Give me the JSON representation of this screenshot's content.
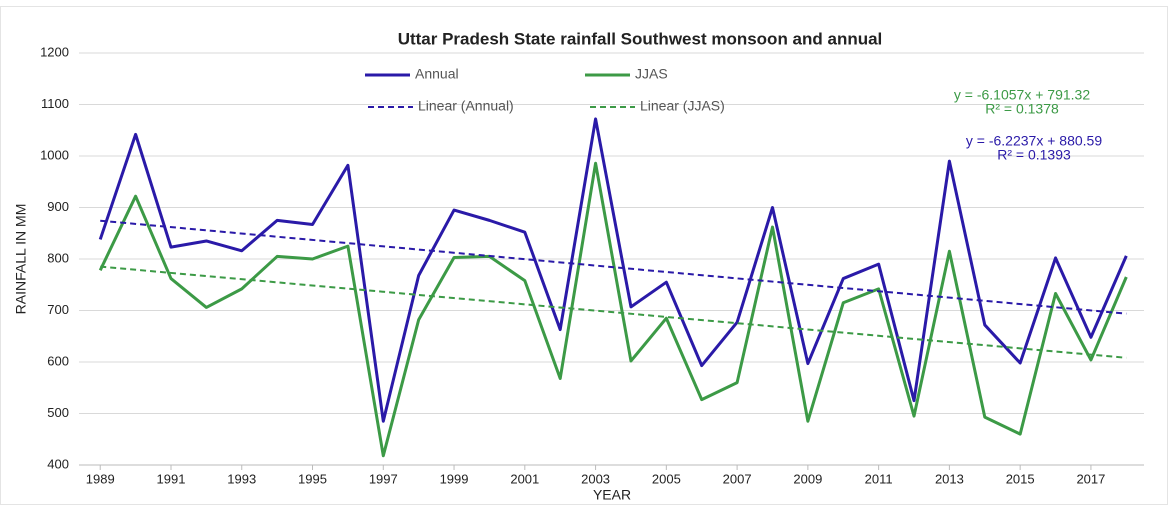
{
  "chart_data": {
    "type": "line",
    "title": "Uttar Pradesh State rainfall Southwest monsoon and annual",
    "x_label": "YEAR",
    "y_label": "RAINFALL IN MM",
    "x": [
      1989,
      1990,
      1991,
      1992,
      1993,
      1994,
      1995,
      1996,
      1997,
      1998,
      1999,
      2000,
      2001,
      2002,
      2003,
      2004,
      2005,
      2006,
      2007,
      2008,
      2009,
      2010,
      2011,
      2012,
      2013,
      2014,
      2015,
      2016,
      2017,
      2018
    ],
    "series": [
      {
        "name": "Annual",
        "color": "#2a1aa8",
        "values": [
          838,
          1042,
          823,
          835,
          816,
          875,
          867,
          982,
          485,
          768,
          895,
          875,
          852,
          663,
          1072,
          707,
          755,
          593,
          677,
          900,
          597,
          762,
          790,
          525,
          990,
          672,
          598,
          802,
          648,
          806
        ]
      },
      {
        "name": "JJAS",
        "color": "#3c9a46",
        "values": [
          778,
          922,
          762,
          706,
          742,
          805,
          800,
          825,
          418,
          682,
          803,
          805,
          758,
          568,
          986,
          602,
          685,
          527,
          560,
          862,
          485,
          715,
          742,
          495,
          815,
          493,
          460,
          733,
          604,
          765
        ]
      },
      {
        "name": "Linear (Annual)",
        "color": "#2a1aa8",
        "dashed": true,
        "x": [
          1989,
          2018
        ],
        "values": [
          874.37,
          693.88
        ]
      },
      {
        "name": "Linear (JJAS)",
        "color": "#3c9a46",
        "dashed": true,
        "x": [
          1989,
          2018
        ],
        "values": [
          785.21,
          608.15
        ]
      }
    ],
    "annotations": [
      {
        "color": "#3c9a46",
        "lines": [
          "y = -6.1057x + 791.32",
          "R² = 0.1378"
        ]
      },
      {
        "color": "#2a1aa8",
        "lines": [
          "y = -6.2237x + 880.59",
          "R² = 0.1393"
        ]
      }
    ],
    "xlim": [
      1988.4,
      2018.5
    ],
    "xticks": [
      1989,
      1991,
      1993,
      1995,
      1997,
      1999,
      2001,
      2003,
      2005,
      2007,
      2009,
      2011,
      2013,
      2015,
      2017
    ],
    "ylim": [
      400,
      1200
    ],
    "yticks": [
      400,
      500,
      600,
      700,
      800,
      900,
      1000,
      1100,
      1200
    ],
    "grid": true
  }
}
